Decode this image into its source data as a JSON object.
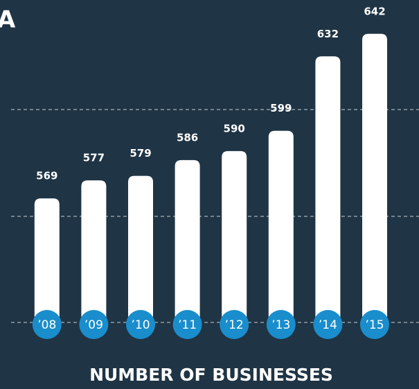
{
  "chart_data": {
    "type": "bar",
    "fragment": "A",
    "title": "NUMBER OF BUSINESSES",
    "categories": [
      "’08",
      "’09",
      "’10",
      "’11",
      "’12",
      "’13",
      "’14",
      "’15"
    ],
    "values": [
      569,
      577,
      579,
      586,
      590,
      599,
      632,
      642
    ],
    "color": "#ffffff",
    "badge_color": "#1a8dcc",
    "ylim": [
      514,
      657
    ]
  }
}
